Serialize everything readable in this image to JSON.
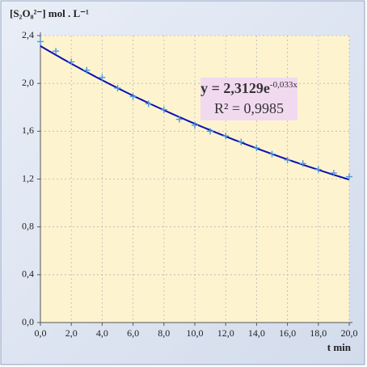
{
  "chart_data": {
    "type": "scatter",
    "y_label": "[S₂O₈²⁻] mol . L⁻¹",
    "x_label": "t min",
    "x": [
      0,
      1,
      2,
      3,
      4,
      5,
      6,
      7,
      8,
      9,
      10,
      11,
      12,
      13,
      14,
      15,
      16,
      17,
      18,
      19,
      20
    ],
    "series": [
      {
        "color": "#4a9ae0",
        "values": [
          2.35,
          2.27,
          2.18,
          2.11,
          2.05,
          1.96,
          1.89,
          1.83,
          1.78,
          1.7,
          1.65,
          1.6,
          1.56,
          1.51,
          1.46,
          1.41,
          1.36,
          1.33,
          1.28,
          1.25,
          1.22
        ]
      }
    ],
    "fit": {
      "type": "exponential",
      "a": 2.3129,
      "b": -0.033,
      "color": "#0a10b0"
    },
    "annotation": {
      "equation": "y = 2,3129e",
      "exponent": "-0,033x",
      "r_squared": "R² = 0,9985"
    },
    "xlim": [
      0,
      20
    ],
    "xticks": [
      {
        "value": 0,
        "label": "0,0"
      },
      {
        "value": 2,
        "label": "2,0"
      },
      {
        "value": 4,
        "label": "4,0"
      },
      {
        "value": 6,
        "label": "6,0"
      },
      {
        "value": 8,
        "label": "8,0"
      },
      {
        "value": 10,
        "label": "10,0"
      },
      {
        "value": 12,
        "label": "12,0"
      },
      {
        "value": 14,
        "label": "14,0"
      },
      {
        "value": 16,
        "label": "16,0"
      },
      {
        "value": 18,
        "label": "18,0"
      },
      {
        "value": 20,
        "label": "20,0"
      }
    ],
    "ylim": [
      0,
      2.4
    ],
    "yticks": [
      {
        "value": 0,
        "label": "0,0"
      },
      {
        "value": 0.4,
        "label": "0,4"
      },
      {
        "value": 0.8,
        "label": "0,8"
      },
      {
        "value": 1.2,
        "label": "1,2"
      },
      {
        "value": 1.6,
        "label": "1,6"
      },
      {
        "value": 2,
        "label": "2,0"
      },
      {
        "value": 2.4,
        "label": "2,4"
      }
    ],
    "grid": true
  }
}
